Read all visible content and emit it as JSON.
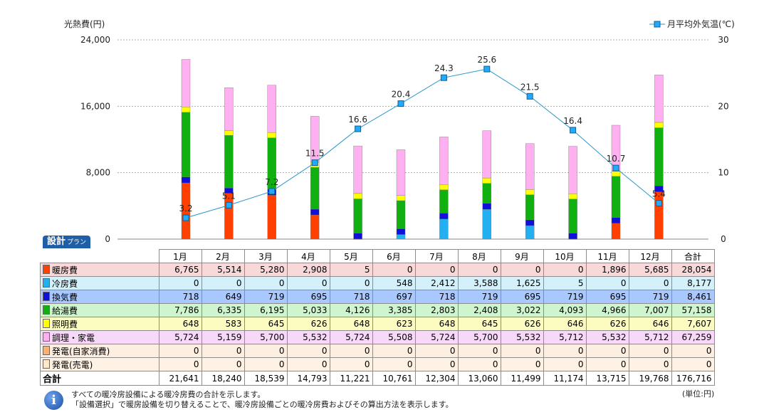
{
  "chart_data": {
    "type": "bar",
    "stacked": true,
    "y_left_title": "光熱費(円)",
    "y_left_ticks": [
      "24,000",
      "16,000",
      "8,000",
      "0"
    ],
    "ylim": [
      0,
      24000
    ],
    "y_right_ticks": [
      "30",
      "20",
      "10",
      "0"
    ],
    "y2lim": [
      0,
      30
    ],
    "grid": true,
    "legend_position": "top-right",
    "categories": [
      "1月",
      "2月",
      "3月",
      "4月",
      "5月",
      "6月",
      "7月",
      "8月",
      "9月",
      "10月",
      "11月",
      "12月"
    ],
    "series": [
      {
        "name": "暖房費",
        "color": "#ff4000",
        "values": [
          6765,
          5514,
          5280,
          2908,
          5,
          0,
          0,
          0,
          0,
          0,
          1896,
          5685
        ]
      },
      {
        "name": "冷房費",
        "color": "#22b0f0",
        "values": [
          0,
          0,
          0,
          0,
          0,
          548,
          2412,
          3588,
          1625,
          5,
          0,
          0
        ]
      },
      {
        "name": "換気費",
        "color": "#1010d8",
        "values": [
          718,
          649,
          719,
          695,
          718,
          697,
          718,
          719,
          695,
          719,
          695,
          719
        ]
      },
      {
        "name": "給湯費",
        "color": "#10b010",
        "values": [
          7786,
          6335,
          6195,
          5033,
          4126,
          3385,
          2803,
          2408,
          3022,
          4093,
          4966,
          7007
        ]
      },
      {
        "name": "照明費",
        "color": "#ffff00",
        "values": [
          648,
          583,
          645,
          626,
          648,
          623,
          648,
          645,
          626,
          646,
          626,
          646
        ]
      },
      {
        "name": "調理・家電",
        "color": "#ffb0f0",
        "values": [
          5724,
          5159,
          5700,
          5532,
          5724,
          5508,
          5724,
          5700,
          5532,
          5712,
          5532,
          5712
        ]
      }
    ],
    "line": {
      "name": "月平均外気温(℃)",
      "color": "#2a98c8",
      "values": [
        3.2,
        5.1,
        7.2,
        11.5,
        16.6,
        20.4,
        24.3,
        25.6,
        21.5,
        16.4,
        10.7,
        5.4
      ],
      "labels": [
        "3.2",
        "5.1",
        "7.2",
        "11.5",
        "16.6",
        "20.4",
        "24.3",
        "25.6",
        "21.5",
        "16.4",
        "10.7",
        "5.4"
      ]
    }
  },
  "plan_badge": {
    "main": "設計",
    "sub": "プラン"
  },
  "table": {
    "headers": [
      "1月",
      "2月",
      "3月",
      "4月",
      "5月",
      "6月",
      "7月",
      "8月",
      "9月",
      "10月",
      "11月",
      "12月",
      "合計"
    ],
    "rows": [
      {
        "label": "暖房費",
        "swatch": "#ff4000",
        "bg": "#f8d8d8",
        "cells": [
          "6,765",
          "5,514",
          "5,280",
          "2,908",
          "5",
          "0",
          "0",
          "0",
          "0",
          "0",
          "1,896",
          "5,685",
          "28,054"
        ]
      },
      {
        "label": "冷房費",
        "swatch": "#22b0f0",
        "bg": "#d4f0fa",
        "cells": [
          "0",
          "0",
          "0",
          "0",
          "0",
          "548",
          "2,412",
          "3,588",
          "1,625",
          "5",
          "0",
          "0",
          "8,177"
        ]
      },
      {
        "label": "換気費",
        "swatch": "#1010d8",
        "bg": "#a8c8ff",
        "cells": [
          "718",
          "649",
          "719",
          "695",
          "718",
          "697",
          "718",
          "719",
          "695",
          "719",
          "695",
          "719",
          "8,461"
        ]
      },
      {
        "label": "給湯費",
        "swatch": "#10b010",
        "bg": "#cff5cf",
        "cells": [
          "7,786",
          "6,335",
          "6,195",
          "5,033",
          "4,126",
          "3,385",
          "2,803",
          "2,408",
          "3,022",
          "4,093",
          "4,966",
          "7,007",
          "57,158"
        ]
      },
      {
        "label": "照明費",
        "swatch": "#ffff00",
        "bg": "#fcfcc0",
        "cells": [
          "648",
          "583",
          "645",
          "626",
          "648",
          "623",
          "648",
          "645",
          "626",
          "646",
          "626",
          "646",
          "7,607"
        ]
      },
      {
        "label": "調理・家電",
        "swatch": "#ffb0f0",
        "bg": "#f8d8f8",
        "cells": [
          "5,724",
          "5,159",
          "5,700",
          "5,532",
          "5,724",
          "5,508",
          "5,724",
          "5,700",
          "5,532",
          "5,712",
          "5,532",
          "5,712",
          "67,259"
        ]
      },
      {
        "label": "発電(自家消費)",
        "swatch": "#ffb070",
        "bg": "#fdeee2",
        "cells": [
          "0",
          "0",
          "0",
          "0",
          "0",
          "0",
          "0",
          "0",
          "0",
          "0",
          "0",
          "0",
          "0"
        ]
      },
      {
        "label": "発電(売電)",
        "swatch": "#ffe8c8",
        "bg": "#fdf2e4",
        "cells": [
          "0",
          "0",
          "0",
          "0",
          "0",
          "0",
          "0",
          "0",
          "0",
          "0",
          "0",
          "0",
          "0"
        ]
      }
    ],
    "total": {
      "label": "合計",
      "cells": [
        "21,641",
        "18,240",
        "18,539",
        "14,793",
        "11,221",
        "10,761",
        "12,304",
        "13,060",
        "11,499",
        "11,174",
        "13,715",
        "19,768",
        "176,716"
      ]
    }
  },
  "notes": [
    "すべての暖冷房設備による暖冷房費の合計を示します。",
    "「設備選択」で暖房設備を切り替えることで、暖冷房設備ごとの暖冷房費およびその算出方法を表示します。"
  ],
  "unit": "(単位:円)"
}
